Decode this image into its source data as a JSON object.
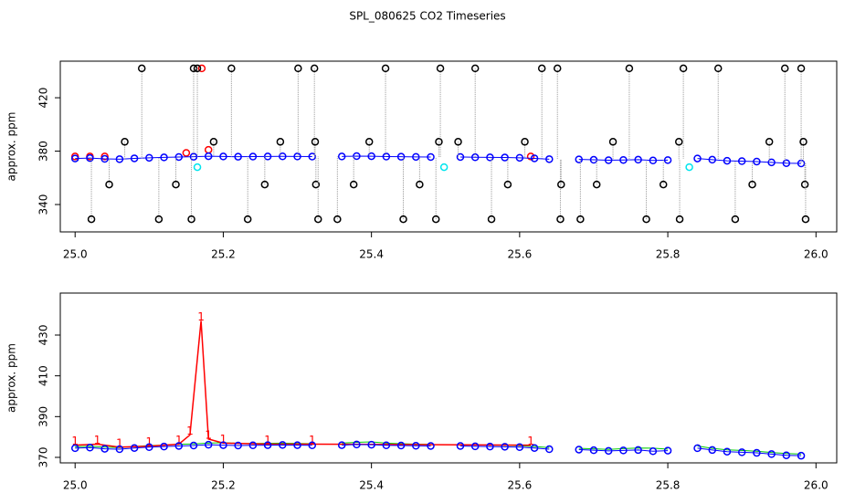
{
  "title": "SPL_080625  CO2 Timeseries",
  "chart_data": [
    {
      "type": "scatter",
      "ylabel": "approx. ppm",
      "xlim": [
        24.98,
        26.028
      ],
      "ylim": [
        319.5,
        447.4
      ],
      "xticks": [
        {
          "value": 25,
          "label": "25.0"
        },
        25.2,
        25.4,
        25.6,
        25.8,
        {
          "value": 26,
          "label": "26.0"
        }
      ],
      "yticks": [
        340,
        380,
        420
      ],
      "x": [
        25.0,
        25.02,
        25.04,
        25.06,
        25.08,
        25.1,
        25.12,
        25.14,
        25.16,
        25.18,
        25.2,
        25.22,
        25.24,
        25.26,
        25.28,
        25.3,
        25.32,
        25.34,
        25.36,
        25.38,
        25.4,
        25.42,
        25.44,
        25.46,
        25.48,
        25.5,
        25.52,
        25.54,
        25.56,
        25.58,
        25.6,
        25.62,
        25.64,
        25.66,
        25.68,
        25.7,
        25.72,
        25.74,
        25.76,
        25.78,
        25.8,
        25.82,
        25.84,
        25.86,
        25.88,
        25.9,
        25.92,
        25.94,
        25.96,
        25.98
      ],
      "series": [
        {
          "color": "#ff0000",
          "style": "points",
          "x": [
            25.0,
            25.02,
            25.04,
            25.15,
            25.171,
            25.18,
            25.615
          ],
          "values": [
            376,
            376,
            376,
            378.7,
            442,
            381,
            376
          ]
        },
        {
          "color": "#00e5ee",
          "style": "points",
          "x": [
            25.165,
            25.498,
            25.829
          ],
          "values": [
            368,
            368,
            368
          ]
        },
        {
          "color": "#0000ff",
          "style": "both",
          "values": [
            374.5,
            374.8,
            374.2,
            374.0,
            374.6,
            375.0,
            375.3,
            375.6,
            375.8,
            376.2,
            376.0,
            375.8,
            375.9,
            376.0,
            376.1,
            376.0,
            375.9,
            null,
            376.0,
            376.3,
            376.2,
            375.9,
            375.8,
            375.7,
            375.6,
            null,
            375.6,
            375.4,
            375.3,
            375.2,
            375.0,
            374.6,
            374.0,
            null,
            373.8,
            373.5,
            373.2,
            373.4,
            373.6,
            373.0,
            373.3,
            null,
            374.5,
            373.6,
            372.8,
            372.5,
            372.2,
            371.6,
            371.0,
            370.8
          ]
        },
        {
          "color": "#000000",
          "style": "points",
          "drop_lines": true,
          "x": [
            25.022,
            25.046,
            25.067,
            25.09,
            25.113,
            25.136,
            25.157,
            25.16,
            25.165,
            25.187,
            25.211,
            25.233,
            25.256,
            25.277,
            25.301,
            25.323,
            25.324,
            25.325,
            25.328,
            25.354,
            25.376,
            25.397,
            25.419,
            25.443,
            25.465,
            25.487,
            25.491,
            25.493,
            25.517,
            25.54,
            25.562,
            25.584,
            25.607,
            25.63,
            25.651,
            25.655,
            25.656,
            25.682,
            25.704,
            25.726,
            25.748,
            25.771,
            25.794,
            25.815,
            25.816,
            25.821,
            25.868,
            25.891,
            25.914,
            25.937,
            25.958,
            25.98,
            25.983,
            25.985,
            25.986
          ],
          "values": [
            329,
            355,
            387,
            442,
            329,
            355,
            329,
            442,
            442,
            387,
            442,
            329,
            355,
            387,
            442,
            442,
            387,
            355,
            329,
            329,
            355,
            387,
            442,
            329,
            355,
            329,
            387,
            442,
            387,
            442,
            329,
            355,
            387,
            442,
            442,
            329,
            355,
            329,
            355,
            387,
            442,
            329,
            355,
            387,
            329,
            442,
            442,
            329,
            355,
            387,
            442,
            442,
            387,
            355,
            329
          ]
        }
      ]
    },
    {
      "type": "line",
      "ylabel": "approx. ppm",
      "xlim": [
        24.98,
        26.028
      ],
      "ylim": [
        367.3,
        450.6
      ],
      "xticks": [
        {
          "value": 25,
          "label": "25.0"
        },
        25.2,
        25.4,
        25.6,
        25.8,
        {
          "value": 26,
          "label": "26.0"
        }
      ],
      "yticks": [
        370,
        390,
        410,
        430
      ],
      "x": [
        25.0,
        25.02,
        25.04,
        25.06,
        25.08,
        25.1,
        25.12,
        25.14,
        25.16,
        25.18,
        25.2,
        25.22,
        25.24,
        25.26,
        25.28,
        25.3,
        25.32,
        25.34,
        25.36,
        25.38,
        25.4,
        25.42,
        25.44,
        25.46,
        25.48,
        25.5,
        25.52,
        25.54,
        25.56,
        25.58,
        25.6,
        25.62,
        25.64,
        25.66,
        25.68,
        25.7,
        25.72,
        25.74,
        25.76,
        25.78,
        25.8,
        25.82,
        25.84,
        25.86,
        25.88,
        25.9,
        25.92,
        25.94,
        25.96,
        25.98
      ],
      "series": [
        {
          "color": "#00cd00",
          "style": "line",
          "values": [
            375.2,
            375.4,
            375.0,
            374.8,
            375.3,
            375.8,
            376.0,
            376.4,
            376.6,
            377.0,
            377.2,
            376.9,
            376.8,
            376.9,
            377.0,
            376.8,
            376.7,
            null,
            377.0,
            377.4,
            377.6,
            377.0,
            376.7,
            376.5,
            376.4,
            null,
            376.3,
            376.1,
            376.0,
            375.9,
            375.7,
            375.3,
            374.8,
            null,
            374.4,
            374.2,
            373.9,
            374.3,
            374.6,
            374.5,
            374.0,
            null,
            375.6,
            374.4,
            373.7,
            373.4,
            373.0,
            372.4,
            371.9,
            371.6
          ]
        },
        {
          "color": "#ff0000",
          "style": "symbols",
          "marker": "1",
          "x": [
            25.0,
            25.03,
            25.06,
            25.1,
            25.14,
            25.155,
            25.17,
            25.18,
            25.2,
            25.26,
            25.32,
            25.615
          ],
          "values": [
            376,
            376.5,
            375,
            375.5,
            376.5,
            381,
            437,
            379,
            377,
            376.5,
            376.5,
            376
          ]
        },
        {
          "color": "#0000ff",
          "style": "both",
          "values": [
            374.5,
            374.8,
            374.2,
            374.0,
            374.6,
            375.0,
            375.3,
            375.6,
            375.8,
            376.2,
            376.0,
            375.8,
            375.9,
            376.0,
            376.1,
            376.0,
            375.9,
            null,
            376.0,
            376.3,
            376.2,
            375.9,
            375.8,
            375.7,
            375.6,
            null,
            375.6,
            375.4,
            375.3,
            375.2,
            375.0,
            374.6,
            374.0,
            null,
            373.8,
            373.5,
            373.2,
            373.4,
            373.6,
            373.0,
            373.3,
            null,
            374.5,
            373.6,
            372.8,
            372.5,
            372.2,
            371.6,
            371.0,
            370.8
          ]
        }
      ]
    }
  ]
}
